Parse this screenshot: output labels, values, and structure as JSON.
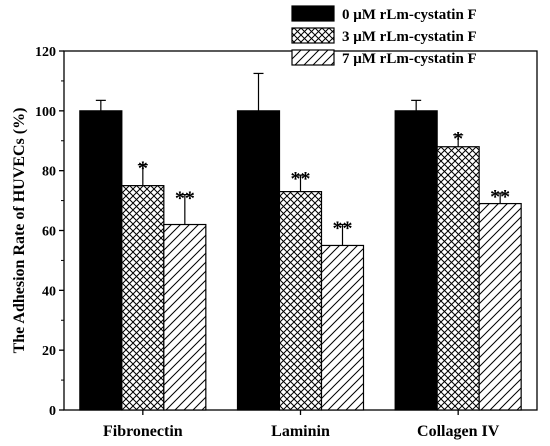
{
  "chart_data": {
    "type": "bar",
    "ylabel": "The Adhesion Rate of HUVECs (%)",
    "xlabel": "",
    "ylim": [
      0,
      120
    ],
    "yticks": [
      0,
      20,
      40,
      60,
      80,
      100,
      120
    ],
    "categories": [
      "Fibronectin",
      "Laminin",
      "Collagen IV"
    ],
    "legend_position": "top-right",
    "grid": false,
    "series": [
      {
        "name": "0 μM  rLm-cystatin F",
        "values": [
          100,
          100,
          100
        ],
        "errors": [
          3.5,
          12.5,
          3.5
        ],
        "fill": "solid-black",
        "significance": [
          "",
          "",
          ""
        ]
      },
      {
        "name": "3 μM  rLm-cystatin F",
        "values": [
          75,
          73,
          88
        ],
        "errors": [
          7,
          5.5,
          4
        ],
        "fill": "crosshatch",
        "significance": [
          "*",
          "**",
          "*"
        ]
      },
      {
        "name": "7 μM  rLm-cystatin F",
        "values": [
          62,
          55,
          69
        ],
        "errors": [
          10,
          7,
          3.5
        ],
        "fill": "diagonal-hatch",
        "significance": [
          "**",
          "**",
          "**"
        ]
      }
    ]
  }
}
